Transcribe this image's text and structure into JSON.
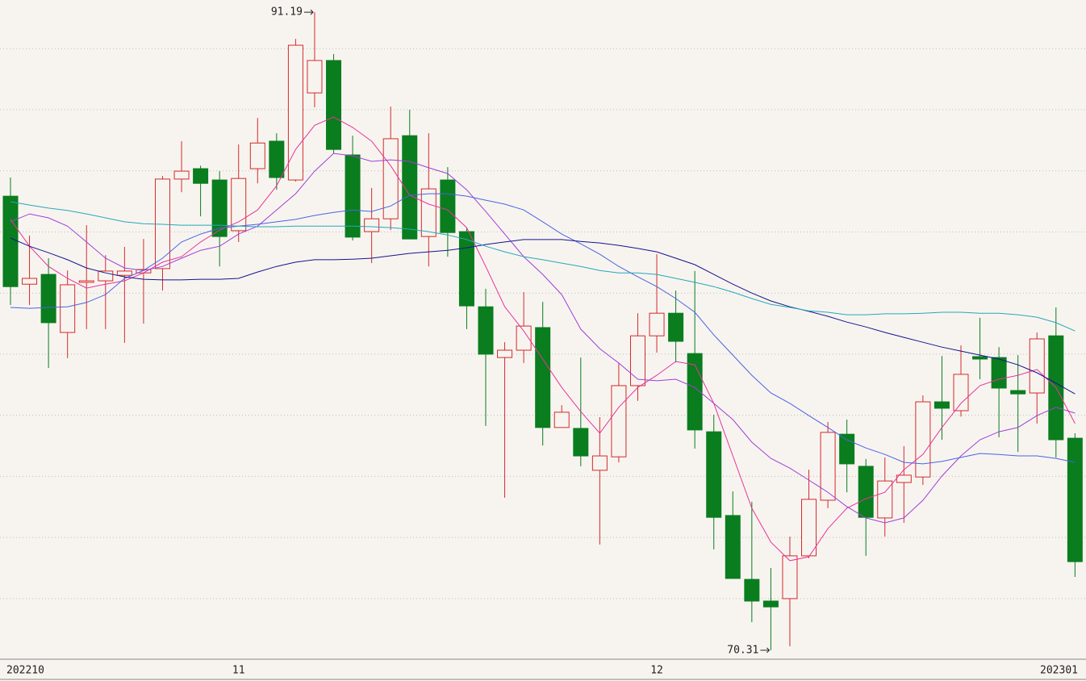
{
  "chart_data": {
    "type": "candlestick",
    "x": [
      "202210",
      null,
      null,
      null,
      null,
      null,
      null,
      null,
      null,
      null,
      null,
      null,
      "11",
      null,
      null,
      null,
      null,
      null,
      null,
      null,
      null,
      null,
      null,
      null,
      null,
      null,
      null,
      null,
      null,
      null,
      null,
      null,
      null,
      null,
      "12",
      null,
      null,
      null,
      null,
      null,
      null,
      null,
      null,
      null,
      null,
      null,
      null,
      null,
      null,
      null,
      null,
      null,
      null,
      null,
      null,
      "202301",
      null
    ],
    "open": [
      85.17,
      82.29,
      82.61,
      80.71,
      82.35,
      82.4,
      82.58,
      82.66,
      82.8,
      85.73,
      86.07,
      85.7,
      84.04,
      86.07,
      86.97,
      85.7,
      88.55,
      89.61,
      86.52,
      84.01,
      84.43,
      87.15,
      83.85,
      85.7,
      84.01,
      81.55,
      79.89,
      80.13,
      80.87,
      77.6,
      77.57,
      76.2,
      76.64,
      78.97,
      80.6,
      81.34,
      80.02,
      77.46,
      74.72,
      72.63,
      71.92,
      72.0,
      73.4,
      75.22,
      77.38,
      76.33,
      74.64,
      75.8,
      75.98,
      78.44,
      78.15,
      79.92,
      79.89,
      78.81,
      78.73,
      80.6,
      77.25
    ],
    "high": [
      85.78,
      83.88,
      83.14,
      82.74,
      84.22,
      83.24,
      83.51,
      83.77,
      85.83,
      86.97,
      86.17,
      85.99,
      86.86,
      87.73,
      87.23,
      90.32,
      91.19,
      89.82,
      87.15,
      85.44,
      88.1,
      88.0,
      87.23,
      86.12,
      84.12,
      82.14,
      80.39,
      82.03,
      81.71,
      78.33,
      79.89,
      77.94,
      79.71,
      81.34,
      83.27,
      82.08,
      82.72,
      78.02,
      75.51,
      75.17,
      73.0,
      74.03,
      76.22,
      77.78,
      77.86,
      76.57,
      76.62,
      76.99,
      78.65,
      79.94,
      80.29,
      81.19,
      80.23,
      79.97,
      80.71,
      81.53,
      77.41
    ],
    "low": [
      81.61,
      81.61,
      79.55,
      79.87,
      80.82,
      80.82,
      80.37,
      81.0,
      82.08,
      85.3,
      84.51,
      82.87,
      83.67,
      85.59,
      85.38,
      85.65,
      88.08,
      86.57,
      83.72,
      82.98,
      84.06,
      83.77,
      82.87,
      83.19,
      80.82,
      77.65,
      75.3,
      79.71,
      77.01,
      77.6,
      76.33,
      73.77,
      76.46,
      78.47,
      80.05,
      79.73,
      76.91,
      73.61,
      72.66,
      71.23,
      70.31,
      70.44,
      73.32,
      74.96,
      75.48,
      73.4,
      74.03,
      74.48,
      75.72,
      77.2,
      77.96,
      79.18,
      77.28,
      76.8,
      77.73,
      76.62,
      72.71
    ],
    "close": [
      82.21,
      82.48,
      81.03,
      82.27,
      82.4,
      82.72,
      82.72,
      82.77,
      85.73,
      85.99,
      85.59,
      83.85,
      85.75,
      86.91,
      85.78,
      90.11,
      89.61,
      86.7,
      83.83,
      84.43,
      87.05,
      83.77,
      85.41,
      83.98,
      81.58,
      80.0,
      80.13,
      80.92,
      77.6,
      78.1,
      76.67,
      76.67,
      78.97,
      80.6,
      81.34,
      80.42,
      77.52,
      74.66,
      72.66,
      71.92,
      71.73,
      73.4,
      75.25,
      77.44,
      76.41,
      74.66,
      75.85,
      76.04,
      78.44,
      78.23,
      79.34,
      79.84,
      78.89,
      78.7,
      80.5,
      77.2,
      73.21
    ],
    "up_color": "#d42a2a",
    "down_color": "#0a7d1e",
    "series": [
      {
        "color": "#e8339a",
        "values": [
          84.41,
          83.53,
          82.87,
          82.48,
          82.16,
          82.29,
          82.4,
          82.66,
          83.01,
          83.19,
          83.67,
          84.06,
          84.33,
          84.72,
          85.51,
          86.7,
          87.49,
          87.76,
          87.42,
          86.97,
          86.17,
          85.2,
          84.91,
          84.72,
          84.14,
          82.87,
          81.55,
          80.76,
          79.84,
          78.91,
          78.12,
          77.41,
          78.26,
          78.91,
          79.31,
          79.76,
          79.65,
          78.39,
          76.67,
          74.96,
          73.85,
          73.24,
          73.37,
          74.29,
          74.96,
          75.27,
          75.48,
          76.22,
          76.72,
          77.6,
          78.39,
          78.97,
          79.18,
          79.31,
          79.5,
          78.91,
          77.73
        ]
      },
      {
        "color": "#a23fd6",
        "values": [
          84.33,
          84.59,
          84.46,
          84.19,
          83.67,
          83.14,
          82.82,
          82.74,
          82.87,
          83.14,
          83.4,
          83.53,
          83.93,
          84.19,
          84.72,
          85.25,
          85.99,
          86.57,
          86.49,
          86.31,
          86.36,
          86.31,
          86.1,
          85.91,
          85.38,
          84.67,
          83.93,
          83.19,
          82.61,
          81.95,
          80.82,
          80.18,
          79.71,
          79.18,
          79.13,
          79.18,
          78.91,
          78.39,
          77.86,
          77.12,
          76.59,
          76.27,
          75.88,
          75.48,
          75.01,
          74.64,
          74.48,
          74.64,
          75.22,
          76.01,
          76.67,
          77.2,
          77.46,
          77.6,
          77.99,
          78.26,
          78.07
        ]
      },
      {
        "color": "#4a63e0",
        "values": [
          81.53,
          81.5,
          81.53,
          81.55,
          81.69,
          81.95,
          82.48,
          82.74,
          83.14,
          83.67,
          83.93,
          84.12,
          84.19,
          84.25,
          84.33,
          84.41,
          84.54,
          84.64,
          84.72,
          84.67,
          84.85,
          85.2,
          85.25,
          85.25,
          85.17,
          85.04,
          84.91,
          84.72,
          84.33,
          83.93,
          83.61,
          83.27,
          82.87,
          82.53,
          82.21,
          81.82,
          81.37,
          80.63,
          79.97,
          79.31,
          78.73,
          78.39,
          77.99,
          77.6,
          77.2,
          76.93,
          76.72,
          76.46,
          76.41,
          76.49,
          76.62,
          76.75,
          76.72,
          76.67,
          76.67,
          76.59,
          76.46
        ]
      },
      {
        "color": "#14148c",
        "values": [
          83.8,
          83.53,
          83.32,
          83.09,
          82.82,
          82.66,
          82.53,
          82.45,
          82.43,
          82.43,
          82.45,
          82.45,
          82.48,
          82.69,
          82.87,
          83.01,
          83.09,
          83.09,
          83.11,
          83.14,
          83.22,
          83.3,
          83.35,
          83.4,
          83.48,
          83.59,
          83.67,
          83.75,
          83.75,
          83.75,
          83.69,
          83.64,
          83.56,
          83.46,
          83.35,
          83.14,
          82.93,
          82.61,
          82.29,
          82.0,
          81.74,
          81.55,
          81.4,
          81.24,
          81.05,
          80.89,
          80.71,
          80.55,
          80.39,
          80.23,
          80.1,
          79.97,
          79.84,
          79.65,
          79.39,
          79.05,
          78.7
        ]
      },
      {
        "color": "#27a8b8",
        "values": [
          84.99,
          84.88,
          84.78,
          84.7,
          84.59,
          84.46,
          84.33,
          84.27,
          84.25,
          84.22,
          84.22,
          84.22,
          84.19,
          84.17,
          84.17,
          84.19,
          84.19,
          84.19,
          84.19,
          84.17,
          84.14,
          84.09,
          84.01,
          83.9,
          83.75,
          83.53,
          83.35,
          83.19,
          83.09,
          82.98,
          82.87,
          82.74,
          82.66,
          82.66,
          82.61,
          82.48,
          82.35,
          82.21,
          82.03,
          81.82,
          81.63,
          81.53,
          81.42,
          81.37,
          81.29,
          81.29,
          81.32,
          81.32,
          81.34,
          81.37,
          81.37,
          81.34,
          81.34,
          81.29,
          81.21,
          81.03,
          80.76
        ]
      }
    ],
    "ylim": [
      70.07,
      91.59
    ],
    "yticks": [
      72,
      74,
      76,
      78,
      80,
      82,
      84,
      86,
      88,
      90
    ],
    "grid": true
  }
}
